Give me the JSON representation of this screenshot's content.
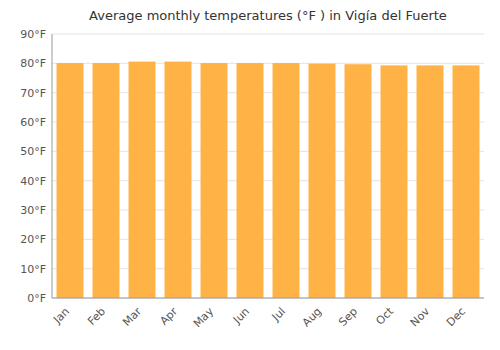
{
  "chart_data": {
    "type": "bar",
    "title": "Average monthly temperatures (°F ) in Vigía del Fuerte",
    "categories": [
      "Jan",
      "Feb",
      "Mar",
      "Apr",
      "May",
      "Jun",
      "Jul",
      "Aug",
      "Sep",
      "Oct",
      "Nov",
      "Dec"
    ],
    "values": [
      80.1,
      80.1,
      80.6,
      80.6,
      80.1,
      80.1,
      80.1,
      79.9,
      79.7,
      79.3,
      79.3,
      79.3
    ],
    "color": "#FFB347",
    "ylim": [
      0,
      90
    ],
    "yticks": [
      {
        "value": 0,
        "label": "0°F"
      },
      {
        "value": 10,
        "label": "10°F"
      },
      {
        "value": 20,
        "label": "20°F"
      },
      {
        "value": 30,
        "label": "30°F"
      },
      {
        "value": 40,
        "label": "40°F"
      },
      {
        "value": 50,
        "label": "50°F"
      },
      {
        "value": 60,
        "label": "60°F"
      },
      {
        "value": 70,
        "label": "70°F"
      },
      {
        "value": 80,
        "label": "80°F"
      },
      {
        "value": 90,
        "label": "90°F"
      }
    ],
    "grid": true
  }
}
